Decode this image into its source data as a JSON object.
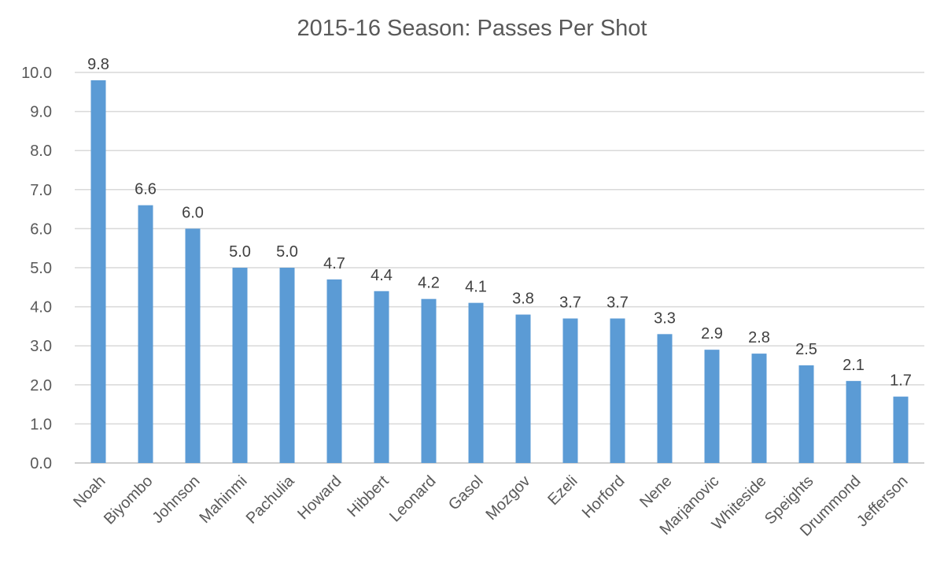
{
  "chart_data": {
    "type": "bar",
    "title": "2015-16 Season: Passes Per Shot",
    "xlabel": "",
    "ylabel": "",
    "categories": [
      "Noah",
      "Biyombo",
      "Johnson",
      "Mahinmi",
      "Pachulia",
      "Howard",
      "Hibbert",
      "Leonard",
      "Gasol",
      "Mozgov",
      "Ezeli",
      "Horford",
      "Nene",
      "Marjanovic",
      "Whiteside",
      "Speights",
      "Drummond",
      "Jefferson"
    ],
    "values": [
      9.8,
      6.6,
      6.0,
      5.0,
      5.0,
      4.7,
      4.4,
      4.2,
      4.1,
      3.8,
      3.7,
      3.7,
      3.3,
      2.9,
      2.8,
      2.5,
      2.1,
      1.7
    ],
    "y_ticks": [
      "0.0",
      "1.0",
      "2.0",
      "3.0",
      "4.0",
      "5.0",
      "6.0",
      "7.0",
      "8.0",
      "9.0",
      "10.0"
    ],
    "ylim": [
      0,
      10
    ],
    "grid": true,
    "legend": "none",
    "bar_color": "#5b9bd5",
    "data_labels": true
  }
}
